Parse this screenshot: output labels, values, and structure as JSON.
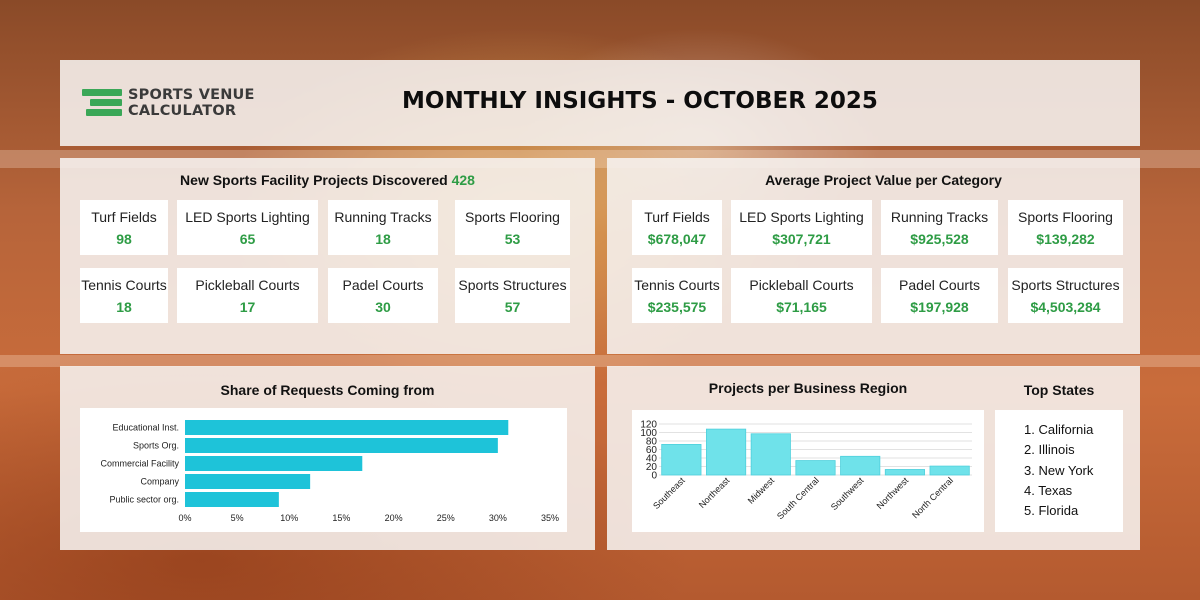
{
  "header": {
    "logo_line1": "SPORTS VENUE",
    "logo_line2": "CALCULATOR",
    "title": "MONTHLY INSIGHTS - OCTOBER 2025"
  },
  "new_projects": {
    "title": "New Sports Facility Projects Discovered",
    "total": "428",
    "items": [
      {
        "label": "Turf Fields",
        "value": "98"
      },
      {
        "label": "LED Sports Lighting",
        "value": "65"
      },
      {
        "label": "Running Tracks",
        "value": "18"
      },
      {
        "label": "Sports Flooring",
        "value": "53"
      },
      {
        "label": "Tennis Courts",
        "value": "18"
      },
      {
        "label": "Pickleball Courts",
        "value": "17"
      },
      {
        "label": "Padel Courts",
        "value": "30"
      },
      {
        "label": "Sports Structures",
        "value": "57"
      }
    ]
  },
  "avg_value": {
    "title": "Average Project Value per Category",
    "items": [
      {
        "label": "Turf Fields",
        "value": "$678,047"
      },
      {
        "label": "LED Sports Lighting",
        "value": "$307,721"
      },
      {
        "label": "Running Tracks",
        "value": "$925,528"
      },
      {
        "label": "Sports Flooring",
        "value": "$139,282"
      },
      {
        "label": "Tennis Courts",
        "value": "$235,575"
      },
      {
        "label": "Pickleball Courts",
        "value": "$71,165"
      },
      {
        "label": "Padel Courts",
        "value": "$197,928"
      },
      {
        "label": "Sports Structures",
        "value": "$4,503,284"
      }
    ]
  },
  "top_states": {
    "title": "Top States",
    "items": [
      "California",
      "Illinois",
      "New York",
      "Texas",
      "Florida"
    ]
  },
  "colors": {
    "accent_green": "#2e9c45",
    "bar": "#1ec3d9",
    "bar_light": "#6fe2ea"
  },
  "chart_data": [
    {
      "type": "bar",
      "orientation": "horizontal",
      "title": "Share of Requests Coming from",
      "categories": [
        "Educational Inst.",
        "Sports Org.",
        "Commercial Facility",
        "Company",
        "Public sector org."
      ],
      "values": [
        31,
        30,
        17,
        12,
        9
      ],
      "xlim": [
        0,
        35
      ],
      "ticks": [
        "0%",
        "5%",
        "10%",
        "15%",
        "20%",
        "25%",
        "30%",
        "35%"
      ],
      "grid": false
    },
    {
      "type": "bar",
      "title": "Projects per Business Region",
      "categories": [
        "Southeast",
        "Northeast",
        "Midwest",
        "South Central",
        "Southwest",
        "Northwest",
        "North Central"
      ],
      "values": [
        72,
        108,
        97,
        34,
        44,
        13,
        21
      ],
      "ylim": [
        0,
        120
      ],
      "ticks": [
        "0",
        "20",
        "40",
        "60",
        "80",
        "100",
        "120"
      ],
      "grid": true
    }
  ]
}
